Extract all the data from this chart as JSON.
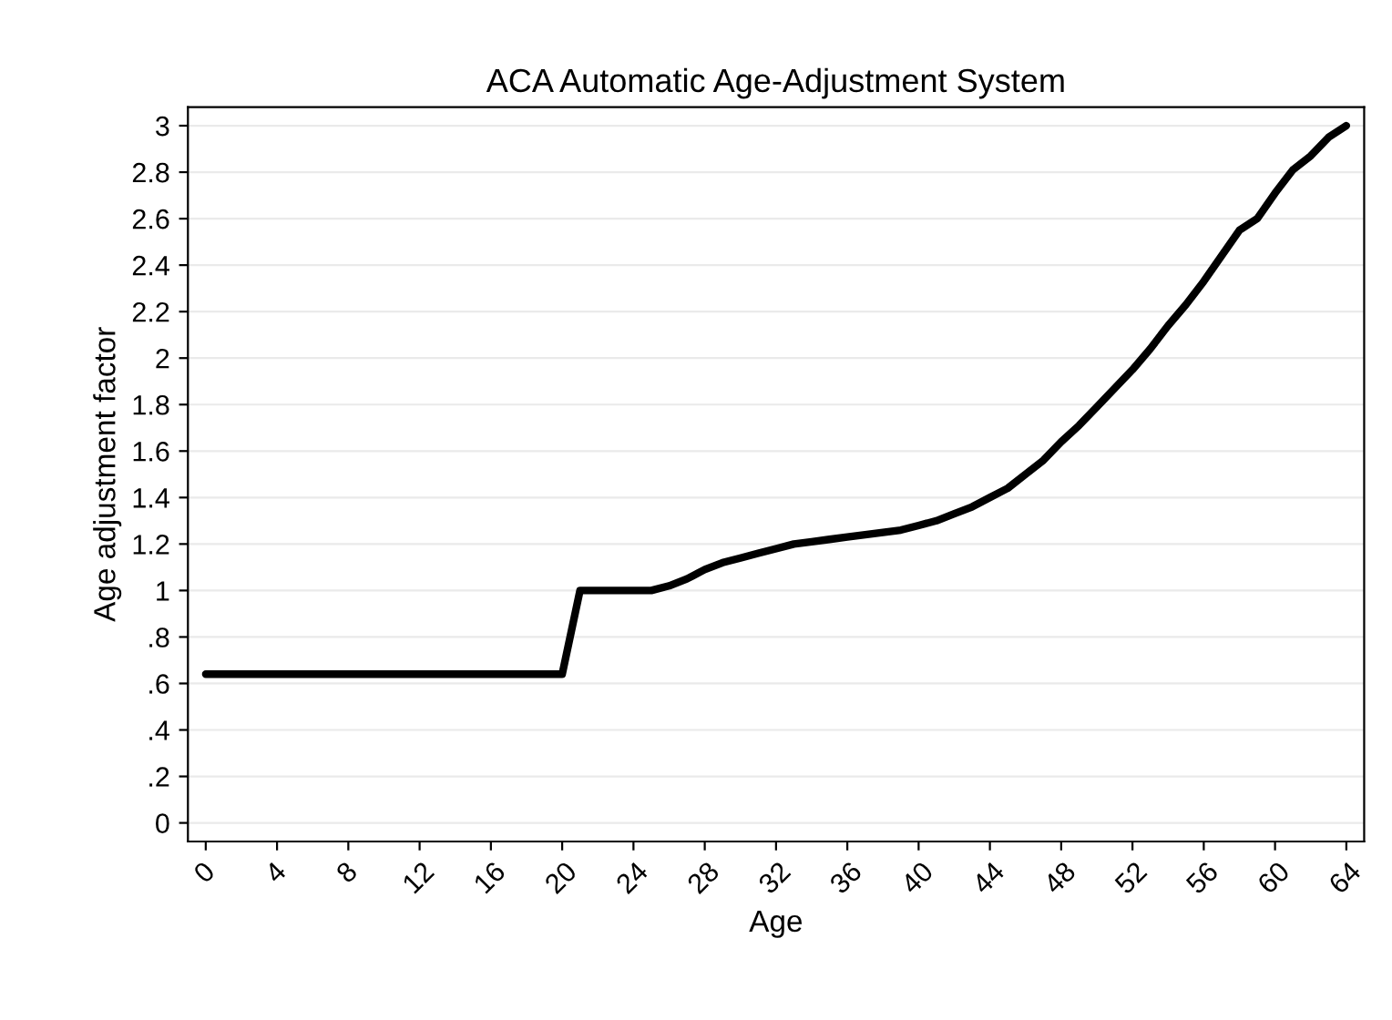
{
  "chart_data": {
    "type": "line",
    "title": "ACA Automatic Age-Adjustment System",
    "xlabel": "Age",
    "ylabel": "Age adjustment factor",
    "x": [
      0,
      1,
      2,
      3,
      4,
      5,
      6,
      7,
      8,
      9,
      10,
      11,
      12,
      13,
      14,
      15,
      16,
      17,
      18,
      19,
      20,
      21,
      22,
      23,
      24,
      25,
      26,
      27,
      28,
      29,
      30,
      31,
      32,
      33,
      34,
      35,
      36,
      37,
      38,
      39,
      40,
      41,
      42,
      43,
      44,
      45,
      46,
      47,
      48,
      49,
      50,
      51,
      52,
      53,
      54,
      55,
      56,
      57,
      58,
      59,
      60,
      61,
      62,
      63,
      64
    ],
    "series": [
      {
        "color": "#000000",
        "values": [
          0.64,
          0.64,
          0.64,
          0.64,
          0.64,
          0.64,
          0.64,
          0.64,
          0.64,
          0.64,
          0.64,
          0.64,
          0.64,
          0.64,
          0.64,
          0.64,
          0.64,
          0.64,
          0.64,
          0.64,
          0.64,
          1.0,
          1.0,
          1.0,
          1.0,
          1.0,
          1.02,
          1.05,
          1.09,
          1.12,
          1.14,
          1.16,
          1.18,
          1.2,
          1.21,
          1.22,
          1.23,
          1.24,
          1.25,
          1.26,
          1.28,
          1.3,
          1.33,
          1.36,
          1.4,
          1.44,
          1.5,
          1.56,
          1.64,
          1.71,
          1.79,
          1.87,
          1.95,
          2.04,
          2.14,
          2.23,
          2.33,
          2.44,
          2.55,
          2.6,
          2.71,
          2.81,
          2.87,
          2.95,
          3.0
        ]
      }
    ],
    "xlim": [
      -1,
      65
    ],
    "xticks": [
      0,
      4,
      8,
      12,
      16,
      20,
      24,
      28,
      32,
      36,
      40,
      44,
      48,
      52,
      56,
      60,
      64
    ],
    "ylim": [
      -0.08,
      3.08
    ],
    "yticks": [
      0,
      {
        "value": 0.2,
        "label": ".2"
      },
      {
        "value": 0.4,
        "label": ".4"
      },
      {
        "value": 0.6,
        "label": ".6"
      },
      {
        "value": 0.8,
        "label": ".8"
      },
      1,
      1.2,
      1.4,
      1.6,
      1.8,
      2,
      2.2,
      2.4,
      2.6,
      2.8,
      3
    ],
    "grid": "y",
    "marker": "none",
    "line_style": "solid",
    "legend": false
  }
}
